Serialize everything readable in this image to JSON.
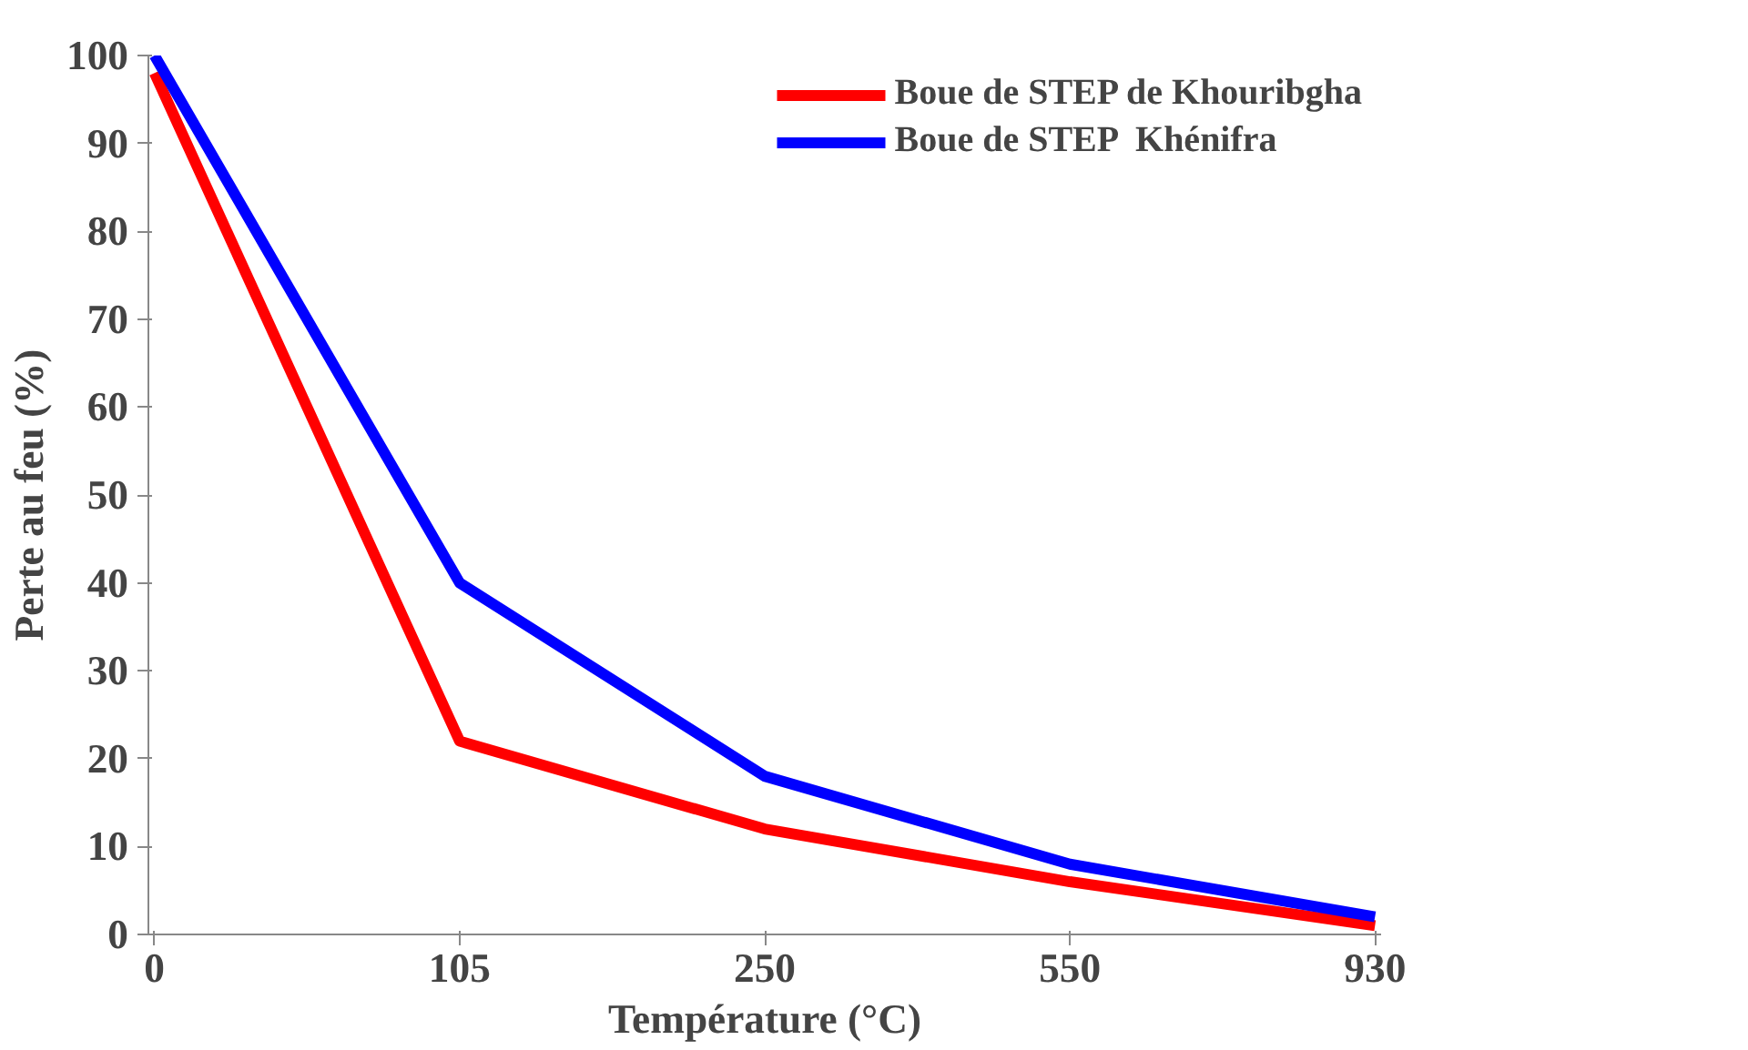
{
  "chart_data": {
    "type": "line",
    "xlabel": "Température (°C)",
    "ylabel": "Perte au feu (%)",
    "categories": [
      "0",
      "105",
      "250",
      "550",
      "930"
    ],
    "series": [
      {
        "name": "Boue de STEP de Khouribgha",
        "color": "#ff0000",
        "values": [
          98,
          22,
          12,
          6,
          1
        ]
      },
      {
        "name": "Boue de STEP  Khénifra",
        "color": "#0000ff",
        "values": [
          100,
          40,
          18,
          8,
          2
        ]
      }
    ],
    "ylim": [
      0,
      100
    ],
    "yticks": [
      0,
      10,
      20,
      30,
      40,
      50,
      60,
      70,
      80,
      90,
      100
    ],
    "grid": false,
    "legend": "top right",
    "marker": "none",
    "line_style": "solid"
  }
}
